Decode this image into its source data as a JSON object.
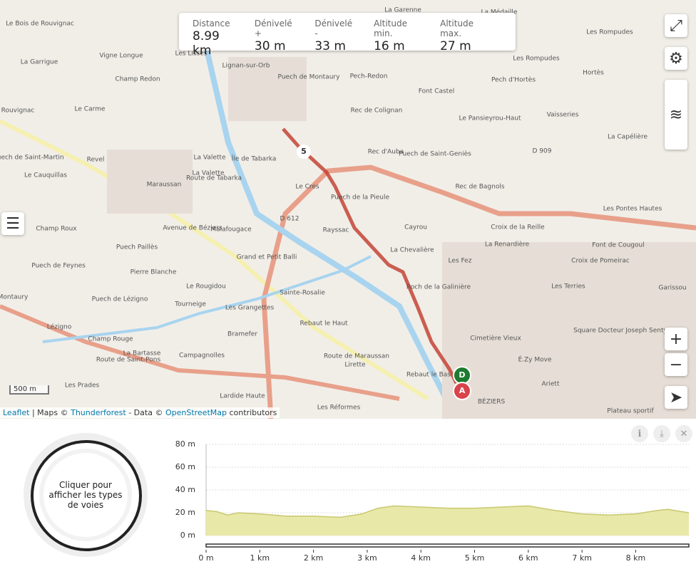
{
  "stats": [
    {
      "label": "Distance",
      "value": "8.99 km"
    },
    {
      "label": "Dénivelé +",
      "value": "30 m"
    },
    {
      "label": "Dénivelé -",
      "value": "33 m"
    },
    {
      "label": "Altitude min.",
      "value": "16 m"
    },
    {
      "label": "Altitude max.",
      "value": "27 m"
    }
  ],
  "map": {
    "labels": [
      "Le Bois de Rouvignac",
      "La Garenne",
      "La Médaille",
      "La Garrigue",
      "Vigne Longue",
      "Les Lisses",
      "Lignan-sur-Orb",
      "Puech de Montaury",
      "Pech-Redon",
      "Les Rompudes",
      "Les Rompudes",
      "Pech d'Hortès",
      "Hortès",
      "Champ Redon",
      "Font Castel",
      "Rouvignac",
      "Le Carme",
      "Rec de Colignan",
      "Le Pansieyrou-Haut",
      "Vaisseries",
      "La Capélière",
      "Puech de Saint-Martin",
      "Revel",
      "La Valette",
      "Île de Tabarka",
      "Rec d'Auba",
      "Puech de Saint-Geniès",
      "Le Cauquillas",
      "La Valette",
      "Maraussan",
      "Le Cres",
      "Puech de la Pieule",
      "Rec de Bagnols",
      "Les Pontes Hautes",
      "Champ Roux",
      "Malafougace",
      "Rayssac",
      "Cayrou",
      "Croix de la Reille",
      "Puech Paillès",
      "Grand et Petit Balli",
      "La Chevalière",
      "La Renardière",
      "Font de Cougoul",
      "Puech de Feynes",
      "Pierre Blanche",
      "Les Fez",
      "Croix de Pomeirac",
      "Montaury",
      "Le Rougidou",
      "Sainte-Rosalie",
      "Puech de Lézigno",
      "Roch de la Galinière",
      "Les Terries",
      "Garissou",
      "Tourneige",
      "Les Grangettes",
      "Rebaut le Haut",
      "Lézigno",
      "Cimetière Vieux",
      "Bramefer",
      "Champ Rouge",
      "Square Docteur Joseph Senty",
      "La Bartasse",
      "Campagnolles",
      "É.Zy Move",
      "Lirette",
      "Rebaut le Bas",
      "Lardide Haute",
      "Ariett",
      "Les Prades",
      "Les Réformes",
      "BÉZIERS",
      "Plateau sportif",
      "Route de Tabarka",
      "Avenue de Béziers",
      "Route de Saint-Pons",
      "Route de Maraussan",
      "D 612",
      "D 909"
    ],
    "markers": {
      "start": "D",
      "end": "A",
      "km": "5"
    },
    "scale": "500 m",
    "zoom_in": "+",
    "zoom_out": "−",
    "attribution": {
      "leaflet": "Leaflet",
      "sep": "| Maps ©",
      "thunderforest": "Thunderforest",
      "data": "- Data ©",
      "osm": "OpenStreetMap",
      "contributors": "contributors"
    }
  },
  "panel": {
    "road_types": "Cliquer pour afficher les types de voies"
  },
  "chart_data": {
    "type": "area",
    "color": "#e8e8a8",
    "x": [
      0,
      0.2,
      0.4,
      0.6,
      1,
      1.5,
      2,
      2.5,
      2.9,
      3.2,
      3.5,
      4,
      4.5,
      5,
      5.5,
      6,
      6.5,
      7,
      7.5,
      8,
      8.4,
      8.6,
      8.99
    ],
    "values": [
      22,
      21,
      18,
      20,
      19,
      17,
      17,
      16,
      19,
      24,
      26,
      25,
      24,
      24,
      25,
      26,
      22,
      19,
      18,
      19,
      22,
      23,
      20
    ],
    "xlim": [
      0,
      8.99
    ],
    "ylim": [
      0,
      80
    ],
    "xticks": [
      {
        "value": 0,
        "label": "0 m"
      },
      {
        "value": 1,
        "label": "1 km"
      },
      {
        "value": 2,
        "label": "2 km"
      },
      {
        "value": 3,
        "label": "3 km"
      },
      {
        "value": 4,
        "label": "4 km"
      },
      {
        "value": 5,
        "label": "5 km"
      },
      {
        "value": 6,
        "label": "6 km"
      },
      {
        "value": 7,
        "label": "7 km"
      },
      {
        "value": 8,
        "label": "8 km"
      }
    ],
    "yticks": [
      {
        "value": 0,
        "label": "0 m"
      },
      {
        "value": 20,
        "label": "20 m"
      },
      {
        "value": 40,
        "label": "40 m"
      },
      {
        "value": 60,
        "label": "60 m"
      },
      {
        "value": 80,
        "label": "80 m"
      }
    ],
    "grid": true
  }
}
